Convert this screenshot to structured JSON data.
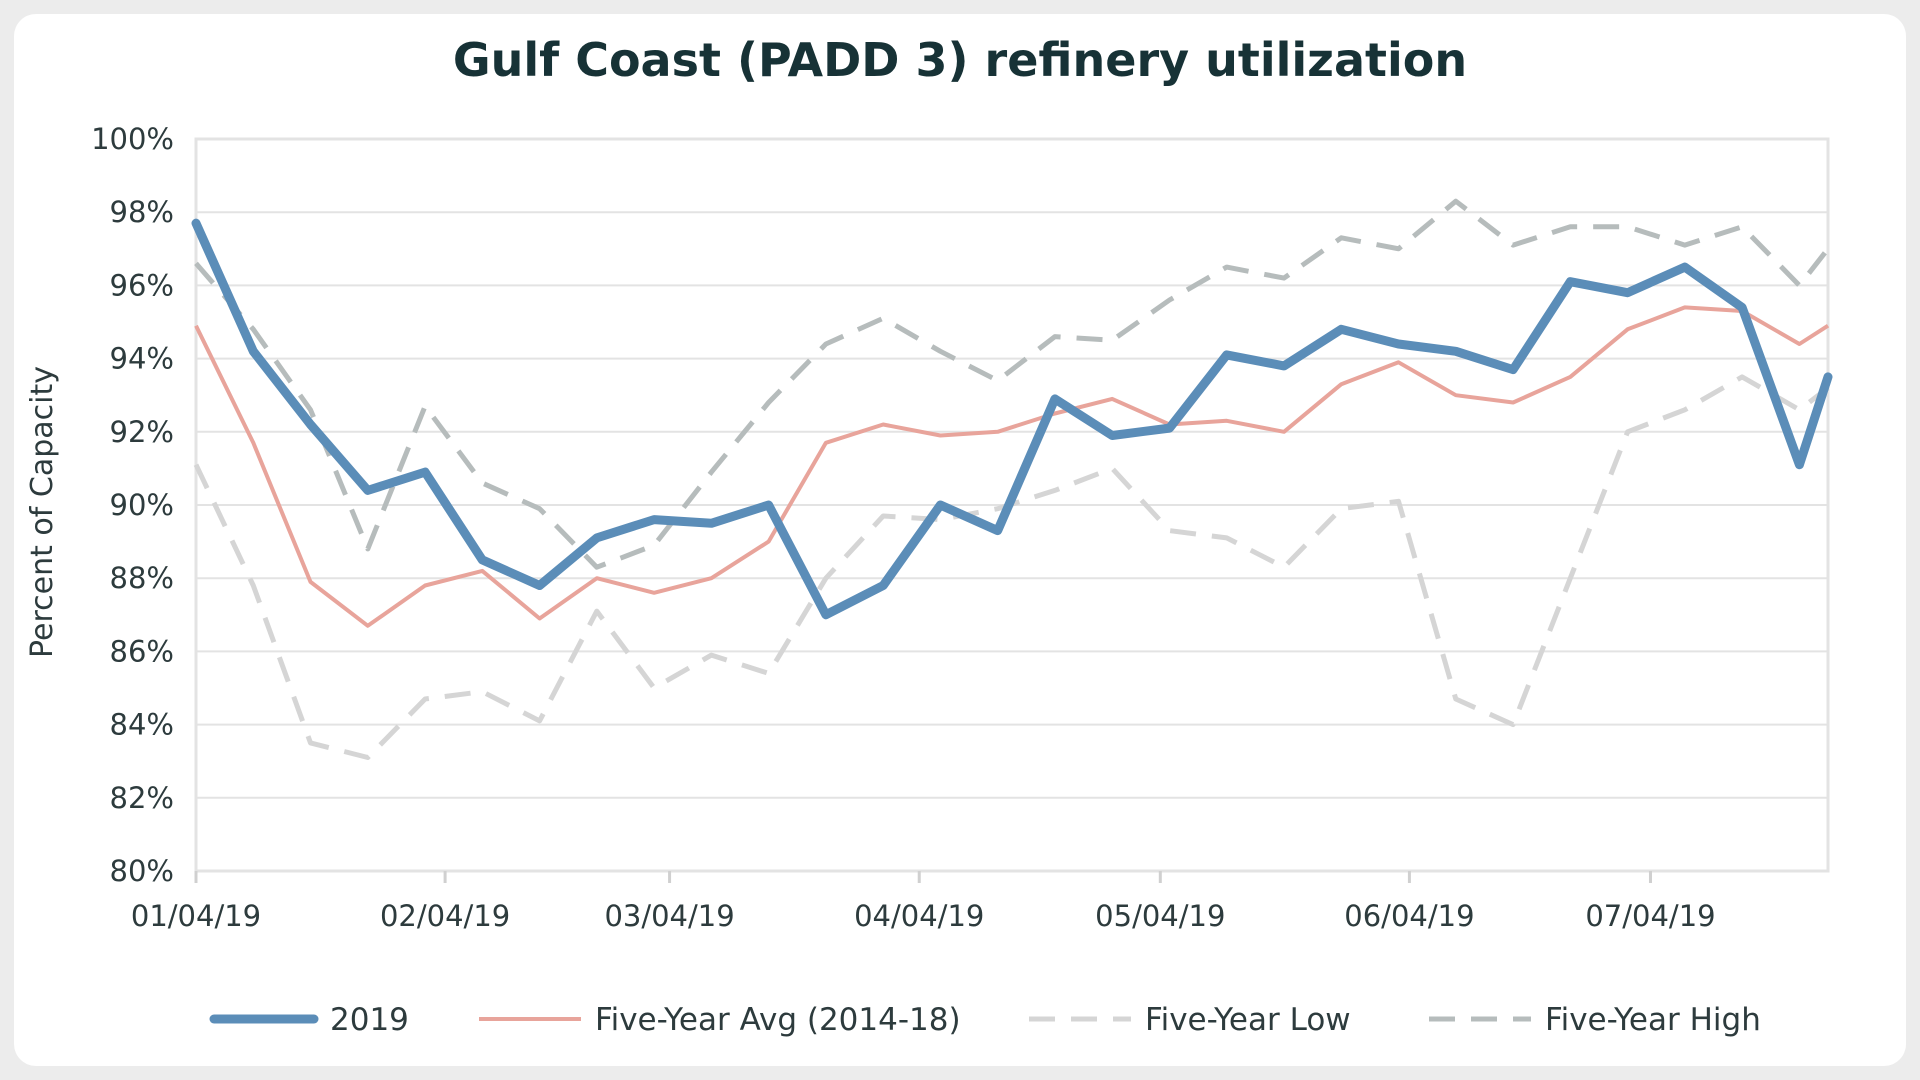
{
  "chart_data": {
    "type": "line",
    "title": "Gulf Coast (PADD 3) refinery utilization",
    "xlabel": "",
    "ylabel": "Percent of Capacity",
    "ylim": [
      80,
      100
    ],
    "y_ticks": [
      "80%",
      "82%",
      "84%",
      "86%",
      "88%",
      "90%",
      "92%",
      "94%",
      "96%",
      "98%",
      "100%"
    ],
    "y_tick_values": [
      80,
      82,
      84,
      86,
      88,
      90,
      92,
      94,
      96,
      98,
      100
    ],
    "x_tick_labels": [
      "01/04/19",
      "02/04/19",
      "03/04/19",
      "04/04/19",
      "05/04/19",
      "06/04/19",
      "07/04/19"
    ],
    "x_tick_weeks": [
      0,
      4.35,
      8.27,
      12.63,
      16.84,
      21.19,
      25.4
    ],
    "x_week_max": 28.5,
    "grid": true,
    "legend_position": "bottom",
    "x_weeks": [
      0,
      1,
      2,
      3,
      4,
      5,
      6,
      7,
      8,
      9,
      10,
      11,
      12,
      13,
      14,
      15,
      16,
      17,
      18,
      19,
      20,
      21,
      22,
      23,
      24,
      25,
      26,
      27,
      28,
      28.5
    ],
    "series": [
      {
        "name": "2019",
        "color": "#5b8db8",
        "style": "solid",
        "width": 9,
        "values": [
          97.7,
          94.2,
          92.2,
          90.4,
          90.9,
          88.5,
          87.8,
          89.1,
          89.6,
          89.5,
          90.0,
          87.0,
          87.8,
          90.0,
          89.3,
          92.9,
          91.9,
          92.1,
          94.1,
          93.8,
          94.8,
          94.4,
          94.2,
          93.7,
          96.1,
          95.8,
          96.5,
          95.4,
          91.1,
          93.5
        ]
      },
      {
        "name": "Five-Year Avg (2014-18)",
        "color": "#e8a49b",
        "style": "solid",
        "width": 4,
        "values": [
          94.9,
          91.7,
          87.9,
          86.7,
          87.8,
          88.2,
          86.9,
          88.0,
          87.6,
          88.0,
          89.0,
          91.7,
          92.2,
          91.9,
          92.0,
          92.5,
          92.9,
          92.2,
          92.3,
          92.0,
          93.3,
          93.9,
          93.0,
          92.8,
          93.5,
          94.8,
          95.4,
          95.3,
          94.4,
          94.9
        ]
      },
      {
        "name": "Five-Year Low",
        "color": "#d5d5d5",
        "style": "dashed",
        "width": 5,
        "values": [
          91.1,
          87.8,
          83.5,
          83.1,
          84.7,
          84.9,
          84.1,
          87.1,
          85.0,
          85.9,
          85.4,
          88.0,
          89.7,
          89.6,
          89.9,
          90.4,
          91.0,
          89.3,
          89.1,
          88.3,
          89.9,
          90.1,
          84.7,
          84.0,
          88.0,
          92.0,
          92.6,
          93.5,
          92.6,
          93.2
        ]
      },
      {
        "name": "Five-Year High",
        "color": "#b6bcbc",
        "style": "dashed",
        "width": 5,
        "values": [
          96.6,
          94.8,
          92.6,
          88.8,
          92.7,
          90.6,
          89.9,
          88.3,
          88.9,
          90.9,
          92.8,
          94.4,
          95.1,
          94.2,
          93.4,
          94.6,
          94.5,
          95.6,
          96.5,
          96.2,
          97.3,
          97.0,
          98.3,
          97.1,
          97.6,
          97.6,
          97.1,
          97.6,
          96.0,
          97.0
        ]
      }
    ]
  }
}
